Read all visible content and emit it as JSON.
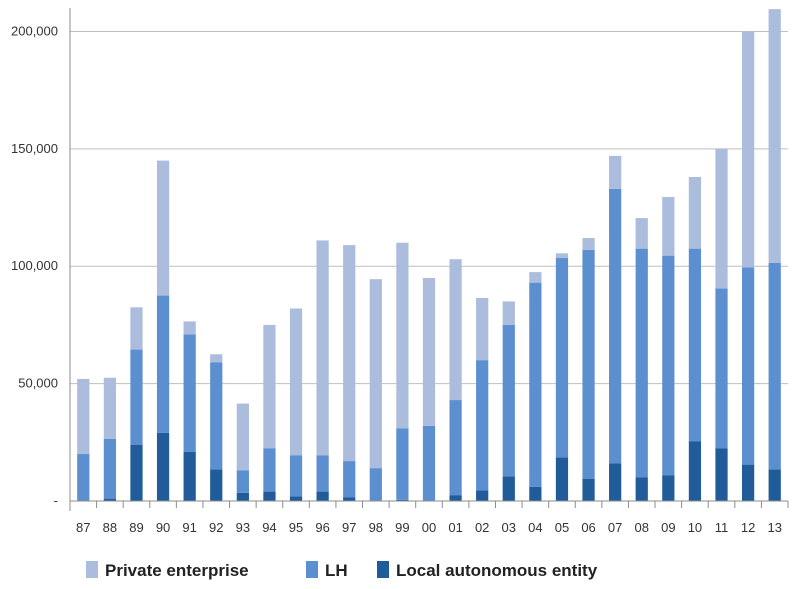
{
  "chart_data": {
    "type": "bar",
    "stacked": true,
    "categories": [
      "87",
      "88",
      "89",
      "90",
      "91",
      "92",
      "93",
      "94",
      "95",
      "96",
      "97",
      "98",
      "99",
      "00",
      "01",
      "02",
      "03",
      "04",
      "05",
      "06",
      "07",
      "08",
      "09",
      "10",
      "11",
      "12",
      "13"
    ],
    "series": [
      {
        "name": "Local autonomous entity",
        "color": "#1F5C99",
        "values": [
          0,
          1000,
          24000,
          29000,
          21000,
          13500,
          3500,
          4000,
          2000,
          4000,
          1500,
          0,
          500,
          0,
          2500,
          4500,
          10500,
          6000,
          18500,
          9500,
          16000,
          10000,
          11000,
          25500,
          22500,
          15500,
          13500
        ]
      },
      {
        "name": "LH",
        "color": "#5B8FD0",
        "values": [
          20000,
          25500,
          40500,
          58500,
          50000,
          45500,
          9500,
          18500,
          17500,
          15500,
          15500,
          14000,
          30500,
          32000,
          40500,
          55500,
          64500,
          87000,
          85000,
          97500,
          117000,
          97500,
          93500,
          82000,
          68000,
          84000,
          88000
        ]
      },
      {
        "name": "Private enterprise",
        "color": "#ABBCDD",
        "values": [
          32000,
          26000,
          18000,
          57500,
          5500,
          3500,
          28500,
          52500,
          62500,
          91500,
          92000,
          80500,
          79000,
          63000,
          60000,
          26500,
          10000,
          4500,
          2000,
          5000,
          14000,
          13000,
          25000,
          30500,
          59500,
          100500,
          108000
        ]
      }
    ],
    "ylim": [
      0,
      210000
    ],
    "y_ticks": [
      {
        "value": 0,
        "label": "-"
      },
      {
        "value": 50000,
        "label": "50,000"
      },
      {
        "value": 100000,
        "label": "100,000"
      },
      {
        "value": 150000,
        "label": "150,000"
      },
      {
        "value": 200000,
        "label": "200,000"
      }
    ],
    "grid": true,
    "legend": {
      "placement": "bottom",
      "order": [
        "Private enterprise",
        "LH",
        "Local autonomous entity"
      ]
    }
  }
}
